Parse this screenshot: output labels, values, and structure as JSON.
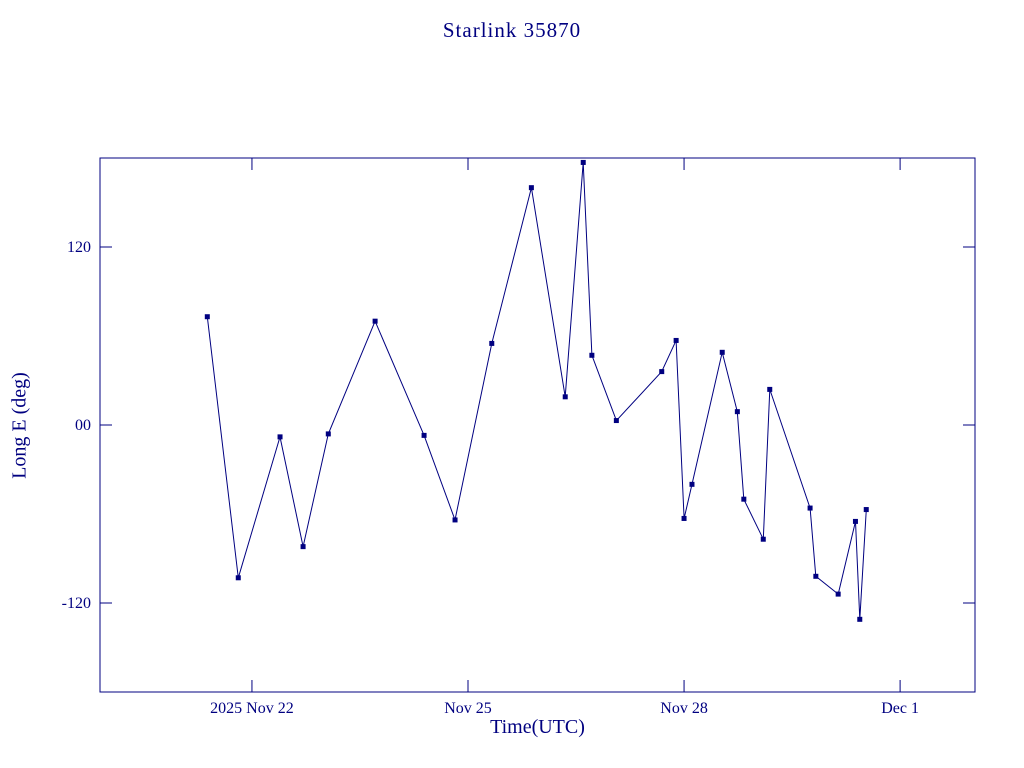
{
  "chart_data": {
    "type": "line",
    "title": "Starlink 35870",
    "xlabel": "Time(UTC)",
    "ylabel": "Long E (deg)",
    "line_color": "#000080",
    "background": "#ffffff",
    "marker": "filled-square",
    "legend": "none",
    "grid": false,
    "x_unit": "day number, Nov 2025 (22 = Nov 22, 31 = Dec 1)",
    "xlim": [
      19.89,
      32.04
    ],
    "ylim": [
      -180,
      180
    ],
    "yticks": [
      {
        "value": 120,
        "label": "120"
      },
      {
        "value": 0,
        "label": "00"
      },
      {
        "value": -120,
        "label": "-120"
      }
    ],
    "xticks": [
      {
        "value": 22,
        "label": "2025 Nov 22"
      },
      {
        "value": 25,
        "label": "Nov 25"
      },
      {
        "value": 28,
        "label": "Nov 28"
      },
      {
        "value": 31,
        "label": "Dec  1"
      }
    ],
    "points": [
      [
        21.38,
        73
      ],
      [
        21.81,
        -103
      ],
      [
        22.39,
        -8
      ],
      [
        22.71,
        -82
      ],
      [
        23.06,
        -6
      ],
      [
        23.71,
        70
      ],
      [
        24.39,
        -7
      ],
      [
        24.82,
        -64
      ],
      [
        25.33,
        55
      ],
      [
        25.88,
        160
      ],
      [
        26.35,
        19
      ],
      [
        26.6,
        177
      ],
      [
        26.72,
        47
      ],
      [
        27.06,
        3
      ],
      [
        27.69,
        36
      ],
      [
        27.89,
        57
      ],
      [
        28.0,
        -63
      ],
      [
        28.11,
        -40
      ],
      [
        28.53,
        49
      ],
      [
        28.74,
        9
      ],
      [
        28.83,
        -50
      ],
      [
        29.1,
        -77
      ],
      [
        29.19,
        24
      ],
      [
        29.75,
        -56
      ],
      [
        29.83,
        -102
      ],
      [
        30.14,
        -114
      ],
      [
        30.38,
        -65
      ],
      [
        30.44,
        -131
      ],
      [
        30.53,
        -57
      ]
    ]
  }
}
